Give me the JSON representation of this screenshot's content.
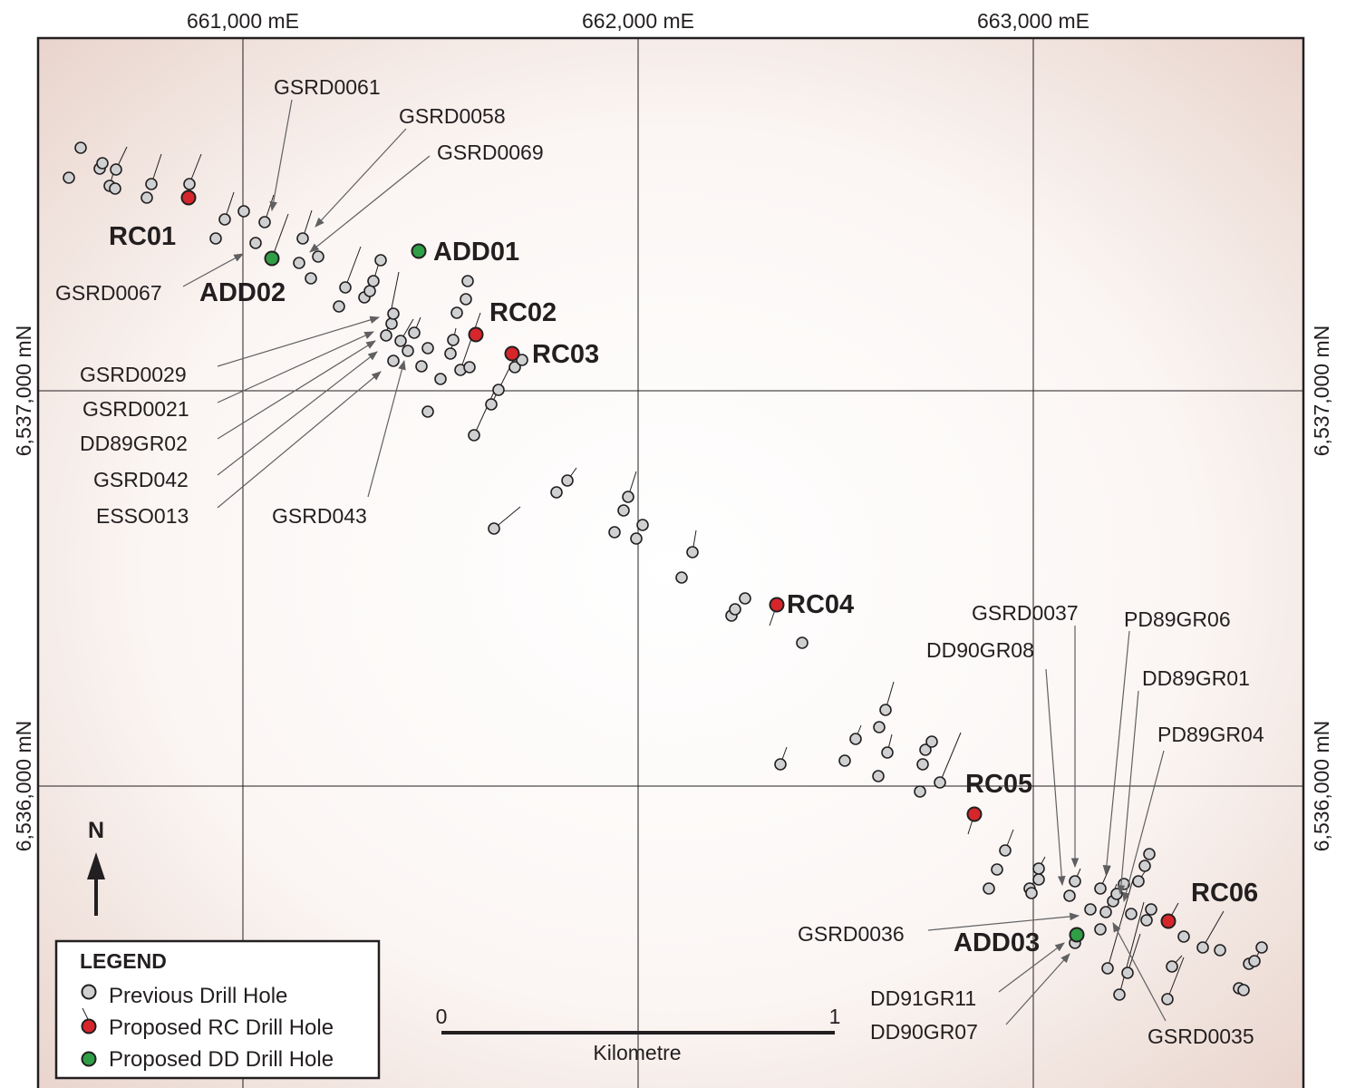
{
  "easting_labels": [
    "661,000 mE",
    "662,000 mE",
    "663,000 mE"
  ],
  "northing_labels": [
    "6,537,000 mN",
    "6,536,000 mN"
  ],
  "north_arrow": {
    "label": "N"
  },
  "scale_bar": {
    "start": "0",
    "end": "1",
    "unit": "Kilometre"
  },
  "legend": {
    "title": "LEGEND",
    "items": [
      {
        "label": "Previous Drill Hole",
        "color": "#cfd0d2"
      },
      {
        "label": "Proposed RC Drill Hole",
        "color": "#d7262b"
      },
      {
        "label": "Proposed DD Drill Hole",
        "color": "#2f9e45"
      }
    ]
  },
  "colors": {
    "previous": "#cfd0d2",
    "rc": "#d7262b",
    "dd": "#2f9e45",
    "outline": "#231f20"
  },
  "proposed_holes": [
    {
      "name": "RC01",
      "type": "rc"
    },
    {
      "name": "ADD02",
      "type": "dd"
    },
    {
      "name": "ADD01",
      "type": "dd"
    },
    {
      "name": "RC02",
      "type": "rc"
    },
    {
      "name": "RC03",
      "type": "rc"
    },
    {
      "name": "RC04",
      "type": "rc"
    },
    {
      "name": "RC05",
      "type": "rc"
    },
    {
      "name": "RC06",
      "type": "rc"
    },
    {
      "name": "ADD03",
      "type": "dd"
    }
  ],
  "hole_labels": [
    "GSRD0061",
    "GSRD0058",
    "GSRD0069",
    "GSRD0067",
    "GSRD0029",
    "GSRD0021",
    "DD89GR02",
    "GSRD042",
    "ESSO013",
    "GSRD043",
    "GSRD0037",
    "PD89GR06",
    "DD90GR08",
    "DD89GR01",
    "PD89GR04",
    "GSRD0036",
    "DD91GR11",
    "DD90GR07",
    "GSRD0035"
  ]
}
